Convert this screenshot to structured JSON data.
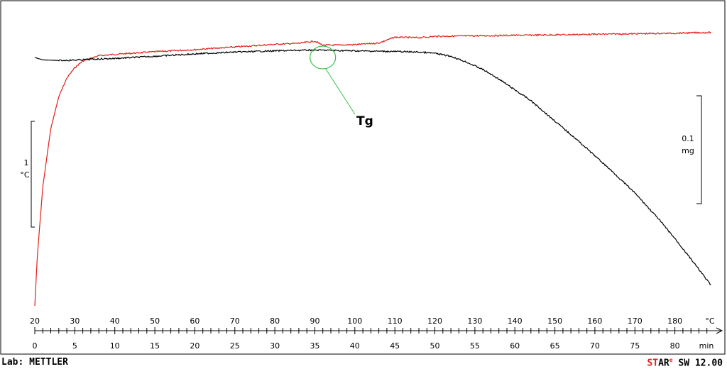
{
  "chart_data": {
    "type": "line",
    "colors": {
      "temperature": "#e0201a",
      "mass": "#000000",
      "annotation": "#3cc04a"
    },
    "x_top": {
      "unit": "°C",
      "ticks": [
        "20",
        "30",
        "40",
        "50",
        "60",
        "70",
        "80",
        "90",
        "100",
        "110",
        "120",
        "130",
        "140",
        "150",
        "160",
        "170",
        "180"
      ]
    },
    "x_bottom": {
      "unit": "min",
      "ticks": [
        "0",
        "5",
        "10",
        "15",
        "20",
        "25",
        "30",
        "35",
        "40",
        "45",
        "50",
        "55",
        "60",
        "65",
        "70",
        "75",
        "80"
      ],
      "range": [
        0,
        85
      ]
    },
    "scale_bars": {
      "left": {
        "value": "1",
        "unit": "°C"
      },
      "right": {
        "value": "0.1",
        "unit": "mg"
      }
    },
    "annotation": {
      "label": "Tg",
      "at_min": 36
    },
    "series": [
      {
        "key": "temperature",
        "t": [
          0,
          0.3,
          1,
          2,
          3,
          4,
          5,
          6,
          7,
          8,
          10,
          15,
          20,
          25,
          30,
          33,
          35,
          36,
          38,
          40,
          43,
          45,
          48,
          50,
          55,
          60,
          65,
          70,
          75,
          80,
          84.5
        ],
        "level": [
          0.0,
          0.18,
          0.45,
          0.67,
          0.79,
          0.86,
          0.9,
          0.925,
          0.935,
          0.945,
          0.95,
          0.96,
          0.968,
          0.978,
          0.988,
          0.992,
          1.0,
          0.985,
          0.985,
          0.987,
          0.993,
          1.015,
          1.013,
          1.018,
          1.02,
          1.022,
          1.024,
          1.026,
          1.028,
          1.03,
          1.033
        ]
      },
      {
        "key": "mass",
        "t": [
          0,
          1,
          3,
          5,
          7,
          10,
          15,
          20,
          25,
          30,
          33,
          35,
          38,
          40,
          45,
          48,
          50,
          52,
          54,
          56,
          58,
          60,
          62,
          65,
          68,
          70,
          72,
          75,
          78,
          80,
          82,
          84.5
        ],
        "level": [
          0.0,
          -0.02,
          -0.025,
          -0.022,
          -0.015,
          -0.008,
          0.01,
          0.03,
          0.045,
          0.055,
          0.06,
          0.062,
          0.058,
          0.055,
          0.05,
          0.045,
          0.035,
          0.01,
          -0.04,
          -0.1,
          -0.18,
          -0.27,
          -0.36,
          -0.53,
          -0.7,
          -0.82,
          -0.94,
          -1.13,
          -1.35,
          -1.51,
          -1.68,
          -1.9
        ]
      }
    ]
  },
  "footer": {
    "lab": "Lab: METTLER",
    "brand_st": "ST",
    "brand_ar": "AR",
    "brand_e": "e",
    "brand_rest": " SW 12.00"
  }
}
